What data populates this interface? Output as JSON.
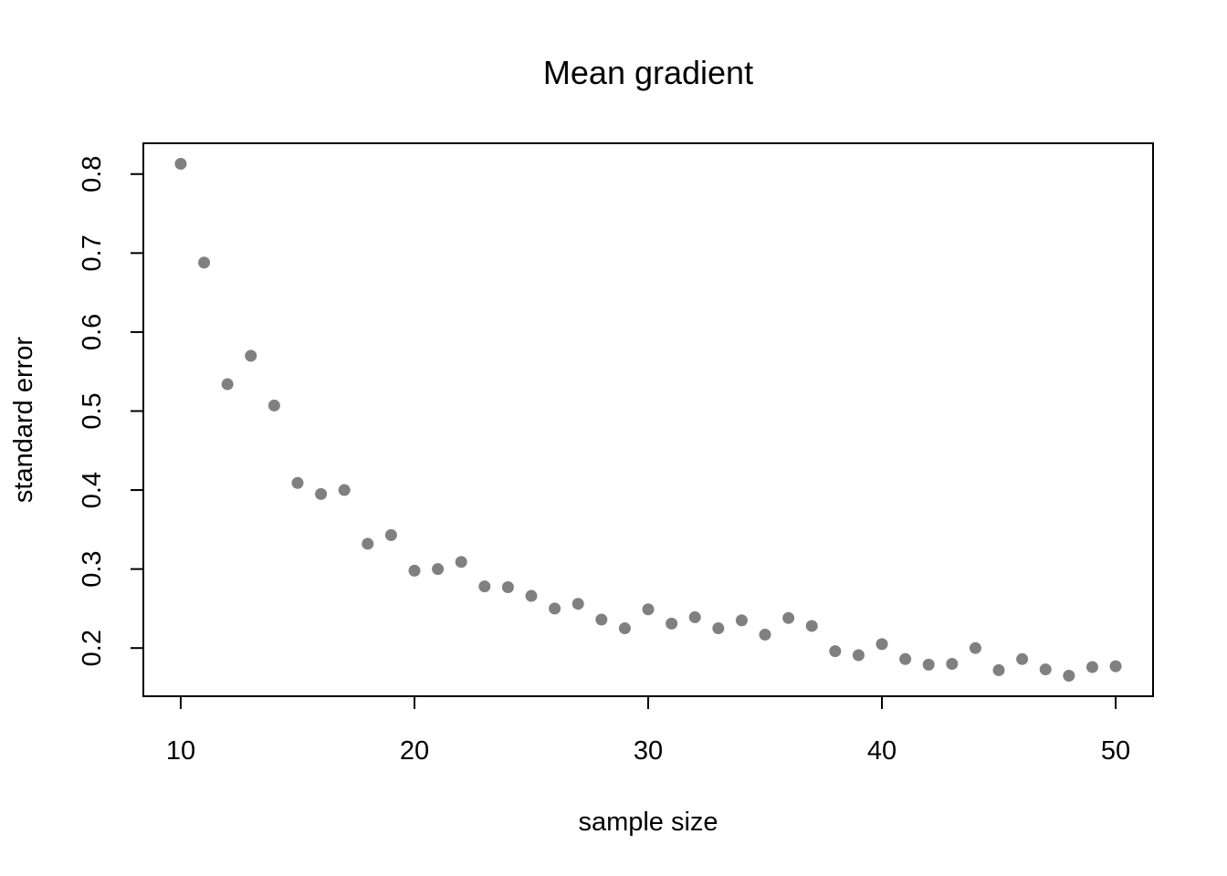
{
  "chart_data": {
    "type": "scatter",
    "title": "Mean gradient",
    "xlabel": "sample size",
    "ylabel": "standard error",
    "xlim": [
      8.4,
      51.6
    ],
    "ylim": [
      0.139,
      0.839
    ],
    "xticks": [
      10,
      20,
      30,
      40,
      50
    ],
    "yticks": [
      0.2,
      0.3,
      0.4,
      0.5,
      0.6,
      0.7,
      0.8
    ],
    "grid": false,
    "point_color": "#808080",
    "series": [
      {
        "x": [
          10,
          11,
          12,
          13,
          14,
          15,
          16,
          17,
          18,
          19,
          20,
          21,
          22,
          23,
          24,
          25,
          26,
          27,
          28,
          29,
          30,
          31,
          32,
          33,
          34,
          35,
          36,
          37,
          38,
          39,
          40,
          41,
          42,
          43,
          44,
          45,
          46,
          47,
          48,
          49,
          50
        ],
        "y": [
          0.813,
          0.688,
          0.534,
          0.57,
          0.507,
          0.409,
          0.395,
          0.4,
          0.332,
          0.343,
          0.298,
          0.3,
          0.309,
          0.278,
          0.277,
          0.266,
          0.25,
          0.256,
          0.236,
          0.225,
          0.249,
          0.231,
          0.239,
          0.225,
          0.235,
          0.217,
          0.238,
          0.228,
          0.196,
          0.191,
          0.205,
          0.186,
          0.179,
          0.18,
          0.2,
          0.172,
          0.186,
          0.173,
          0.165,
          0.176,
          0.177
        ]
      }
    ]
  }
}
